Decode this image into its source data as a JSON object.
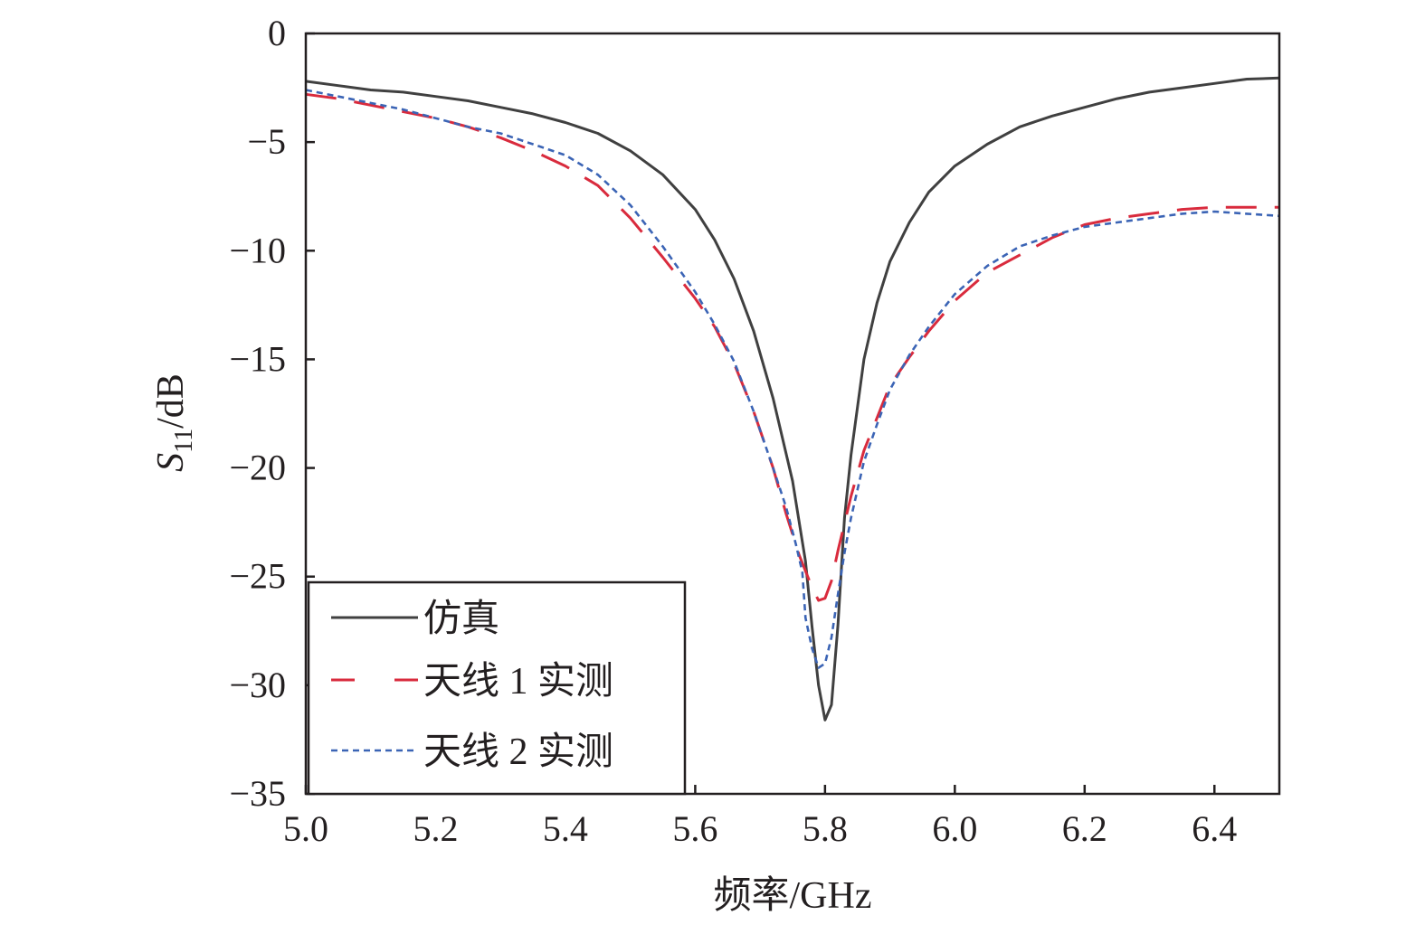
{
  "chart_data": {
    "type": "line",
    "xlabel": "频率/GHz",
    "ylabel": {
      "main": "S",
      "sub": "11",
      "unit": "/dB"
    },
    "xlim": [
      5.0,
      6.5
    ],
    "ylim": [
      -35,
      0
    ],
    "xticks": [
      "5.0",
      "5.2",
      "5.4",
      "5.6",
      "5.8",
      "6.0",
      "6.2",
      "6.4"
    ],
    "yticks": [
      "0",
      "−5",
      "−10",
      "−15",
      "−20",
      "−25",
      "−30",
      "−35"
    ],
    "legend_position": "bottom-left",
    "grid": false,
    "series": [
      {
        "name": "仿真",
        "color": "#404040",
        "style": "solid",
        "x": [
          5.0,
          5.05,
          5.1,
          5.15,
          5.2,
          5.25,
          5.3,
          5.35,
          5.4,
          5.45,
          5.5,
          5.55,
          5.6,
          5.63,
          5.66,
          5.69,
          5.72,
          5.75,
          5.77,
          5.78,
          5.79,
          5.8,
          5.81,
          5.82,
          5.83,
          5.84,
          5.86,
          5.88,
          5.9,
          5.93,
          5.96,
          6.0,
          6.05,
          6.1,
          6.15,
          6.2,
          6.25,
          6.3,
          6.35,
          6.4,
          6.45,
          6.5
        ],
        "y": [
          -2.2,
          -2.4,
          -2.6,
          -2.7,
          -2.9,
          -3.1,
          -3.4,
          -3.7,
          -4.1,
          -4.6,
          -5.4,
          -6.5,
          -8.1,
          -9.5,
          -11.3,
          -13.7,
          -16.8,
          -20.6,
          -24.3,
          -27.3,
          -30.0,
          -31.6,
          -30.9,
          -27.2,
          -22.3,
          -19.4,
          -15.0,
          -12.4,
          -10.5,
          -8.7,
          -7.3,
          -6.1,
          -5.1,
          -4.3,
          -3.8,
          -3.4,
          -3.0,
          -2.7,
          -2.5,
          -2.3,
          -2.1,
          -2.05
        ]
      },
      {
        "name": "天线 1 实测",
        "color": "#d92b3d",
        "style": "dashed",
        "x": [
          5.0,
          5.05,
          5.1,
          5.15,
          5.2,
          5.25,
          5.3,
          5.35,
          5.4,
          5.45,
          5.5,
          5.55,
          5.6,
          5.63,
          5.66,
          5.69,
          5.72,
          5.74,
          5.76,
          5.78,
          5.79,
          5.8,
          5.81,
          5.82,
          5.84,
          5.86,
          5.88,
          5.9,
          5.93,
          5.96,
          6.0,
          6.05,
          6.1,
          6.15,
          6.2,
          6.25,
          6.3,
          6.35,
          6.4,
          6.45,
          6.5
        ],
        "y": [
          -2.8,
          -3.0,
          -3.3,
          -3.6,
          -3.9,
          -4.3,
          -4.8,
          -5.4,
          -6.1,
          -7.0,
          -8.5,
          -10.3,
          -12.2,
          -13.5,
          -15.2,
          -17.4,
          -20.0,
          -22.1,
          -24.0,
          -25.5,
          -26.1,
          -26.0,
          -25.2,
          -23.8,
          -21.3,
          -19.2,
          -17.7,
          -16.2,
          -14.9,
          -13.7,
          -12.3,
          -11.0,
          -10.2,
          -9.4,
          -8.8,
          -8.5,
          -8.3,
          -8.1,
          -8.0,
          -8.0,
          -8.0
        ]
      },
      {
        "name": "天线 2 实测",
        "color": "#3b64b5",
        "style": "dotted",
        "x": [
          5.0,
          5.05,
          5.1,
          5.15,
          5.2,
          5.25,
          5.3,
          5.35,
          5.4,
          5.45,
          5.5,
          5.55,
          5.6,
          5.63,
          5.66,
          5.69,
          5.72,
          5.74,
          5.755,
          5.765,
          5.77,
          5.78,
          5.79,
          5.8,
          5.81,
          5.82,
          5.83,
          5.84,
          5.86,
          5.88,
          5.9,
          5.93,
          5.96,
          6.0,
          6.05,
          6.1,
          6.15,
          6.2,
          6.25,
          6.3,
          6.35,
          6.4,
          6.45,
          6.5
        ],
        "y": [
          -2.6,
          -2.9,
          -3.2,
          -3.5,
          -3.9,
          -4.3,
          -4.6,
          -5.1,
          -5.6,
          -6.5,
          -7.9,
          -9.8,
          -11.9,
          -13.4,
          -15.1,
          -17.4,
          -20.0,
          -21.8,
          -23.5,
          -24.8,
          -26.9,
          -28.3,
          -29.2,
          -29.0,
          -27.8,
          -25.8,
          -23.9,
          -22.3,
          -19.7,
          -18.0,
          -16.4,
          -14.8,
          -13.5,
          -12.0,
          -10.7,
          -9.8,
          -9.3,
          -8.9,
          -8.7,
          -8.5,
          -8.3,
          -8.2,
          -8.3,
          -8.4
        ]
      }
    ]
  }
}
